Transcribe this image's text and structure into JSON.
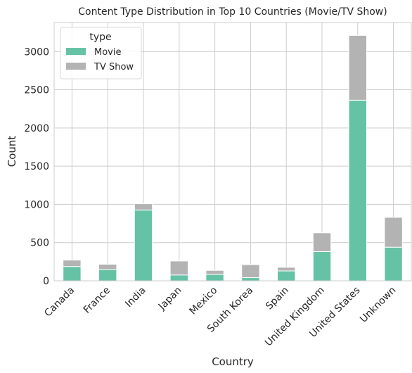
{
  "chart_data": {
    "type": "bar",
    "stacked": true,
    "title": "Content Type Distribution in Top 10 Countries (Movie/TV Show)",
    "xlabel": "Country",
    "ylabel": "Count",
    "ylim": [
      0,
      3380
    ],
    "yticks": [
      0,
      500,
      1000,
      1500,
      2000,
      2500,
      3000
    ],
    "grid": true,
    "legend": {
      "title": "type",
      "placement": "top-left"
    },
    "categories": [
      "Canada",
      "France",
      "India",
      "Japan",
      "Mexico",
      "South Korea",
      "Spain",
      "United Kingdom",
      "United States",
      "Unknown"
    ],
    "series": [
      {
        "name": "Movie",
        "color": "#66c2a5",
        "values": [
          187,
          148,
          927,
          76,
          85,
          41,
          129,
          382,
          2364,
          440
        ]
      },
      {
        "name": "TV Show",
        "color": "#b3b3b3",
        "values": [
          84,
          69,
          81,
          183,
          51,
          171,
          48,
          246,
          847,
          391
        ]
      }
    ]
  }
}
